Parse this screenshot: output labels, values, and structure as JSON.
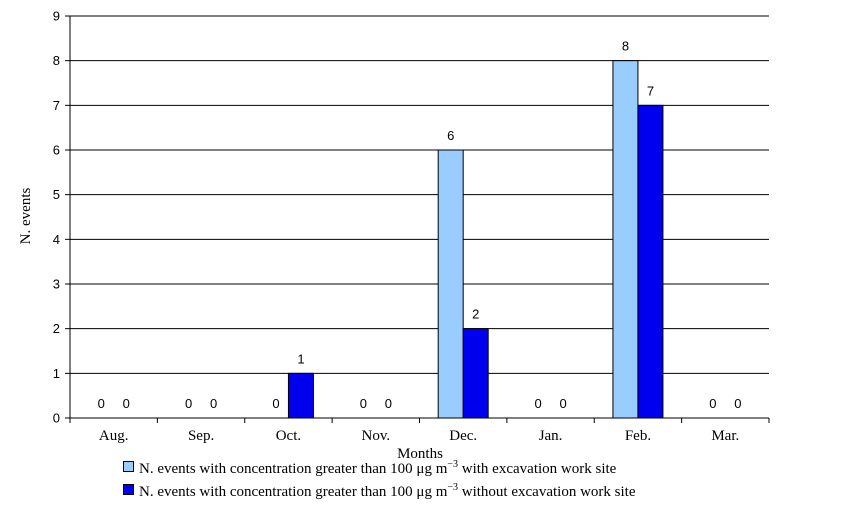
{
  "chart_data": {
    "type": "bar",
    "title": "",
    "xlabel": "Months",
    "ylabel": "N. events",
    "ylim": [
      0,
      9
    ],
    "yticks": [
      0,
      1,
      2,
      3,
      4,
      5,
      6,
      7,
      8,
      9
    ],
    "grid": true,
    "legend_placement": "bottom",
    "categories": [
      "Aug.",
      "Sep.",
      "Oct.",
      "Nov.",
      "Dec.",
      "Jan.",
      "Feb.",
      "Mar."
    ],
    "series": [
      {
        "name": "N. events with concentration greater than 100 μg m⁻³ with excavation work site",
        "legend_text": "N. events with concentration greater than 100 μg m",
        "legend_sup": "−3",
        "legend_suffix": " with excavation work site",
        "color": "#99ccff",
        "values": [
          0,
          0,
          0,
          0,
          6,
          0,
          8,
          0
        ]
      },
      {
        "name": "N. events with concentration greater than 100 μg m⁻³ without excavation work site",
        "legend_text": "N. events with concentration greater than 100 μg m",
        "legend_sup": "−3",
        "legend_suffix": " without excavation work site",
        "color": "#0000ee",
        "values": [
          0,
          0,
          1,
          0,
          2,
          0,
          7,
          0
        ]
      }
    ]
  }
}
